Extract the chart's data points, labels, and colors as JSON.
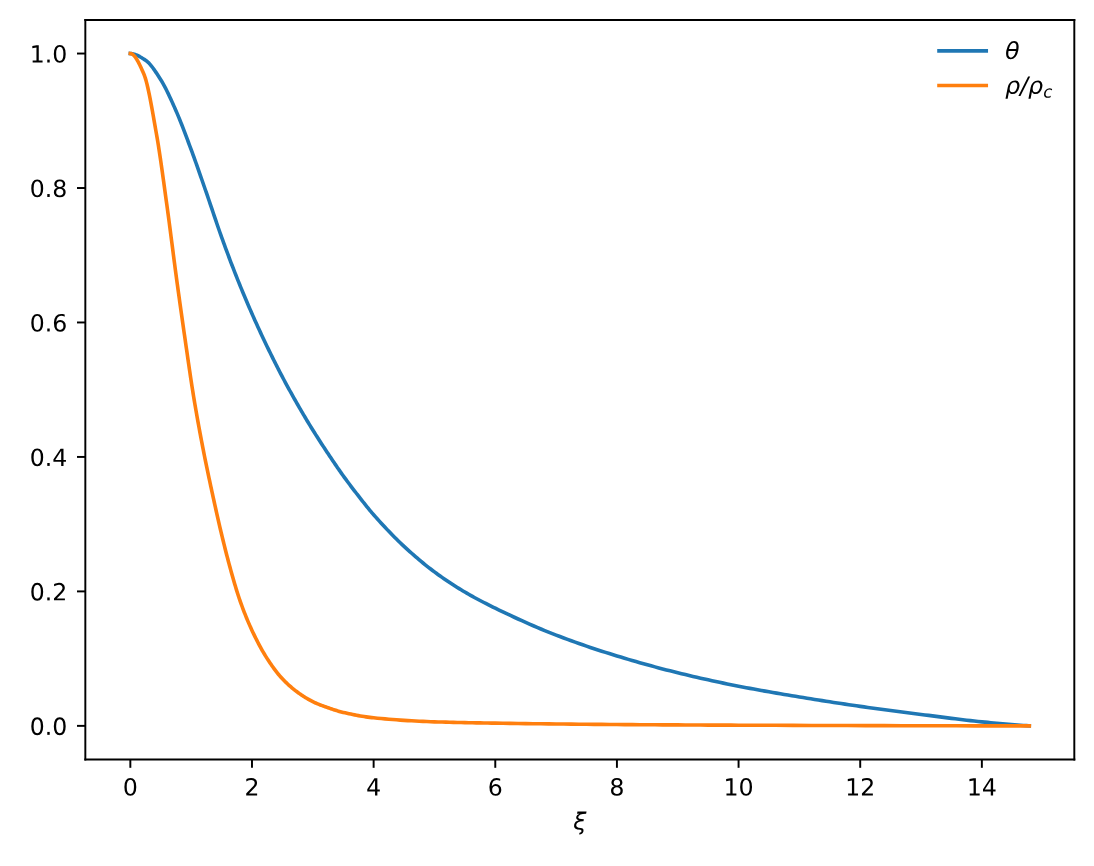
{
  "chart_data": {
    "type": "line",
    "xlabel": "ξ",
    "legend": "top right",
    "marker": "none",
    "line_style": "solid",
    "xlim": [
      -0.74,
      15.52
    ],
    "ylim": [
      -0.05,
      1.05
    ],
    "xticks": [
      0,
      2,
      4,
      6,
      8,
      10,
      12,
      14
    ],
    "yticks": [
      {
        "value": 0,
        "label": "0.0"
      },
      {
        "value": 0.2,
        "label": "0.2"
      },
      {
        "value": 0.4,
        "label": "0.4"
      },
      {
        "value": 0.6,
        "label": "0.6"
      },
      {
        "value": 0.8,
        "label": "0.8"
      },
      {
        "value": 1.0,
        "label": "1.0"
      }
    ],
    "series": [
      {
        "name": "θ",
        "color": "#1f77b4",
        "x": [
          0,
          0.25,
          0.5,
          0.75,
          1.0,
          1.25,
          1.5,
          1.75,
          2.0,
          2.25,
          2.5,
          2.75,
          3.0,
          3.25,
          3.5,
          3.75,
          4.0,
          4.5,
          5.0,
          5.5,
          6.0,
          7.0,
          8.0,
          9.0,
          10.0,
          11.0,
          12.0,
          13.0,
          14.0,
          14.78
        ],
        "values": [
          1.0,
          0.99,
          0.961,
          0.915,
          0.857,
          0.793,
          0.727,
          0.667,
          0.613,
          0.564,
          0.519,
          0.478,
          0.44,
          0.405,
          0.372,
          0.342,
          0.314,
          0.267,
          0.229,
          0.199,
          0.175,
          0.135,
          0.104,
          0.079,
          0.059,
          0.043,
          0.029,
          0.017,
          0.006,
          0.0
        ]
      },
      {
        "name": "ρ/ρ$_{c}$",
        "color": "#ff7f0e",
        "x": [
          0,
          0.22,
          0.43,
          0.6,
          0.76,
          0.9,
          1.04,
          1.2,
          1.35,
          1.5,
          1.65,
          1.8,
          2.0,
          2.25,
          2.5,
          2.75,
          3.0,
          3.25,
          3.5,
          4.0,
          5.0,
          6.0,
          8.0,
          10.0,
          14.78
        ],
        "values": [
          1.0,
          0.97,
          0.88,
          0.775,
          0.665,
          0.575,
          0.49,
          0.41,
          0.345,
          0.285,
          0.232,
          0.187,
          0.142,
          0.1,
          0.07,
          0.05,
          0.036,
          0.027,
          0.02,
          0.012,
          0.006,
          0.004,
          0.002,
          0.001,
          0.0
        ]
      }
    ]
  }
}
